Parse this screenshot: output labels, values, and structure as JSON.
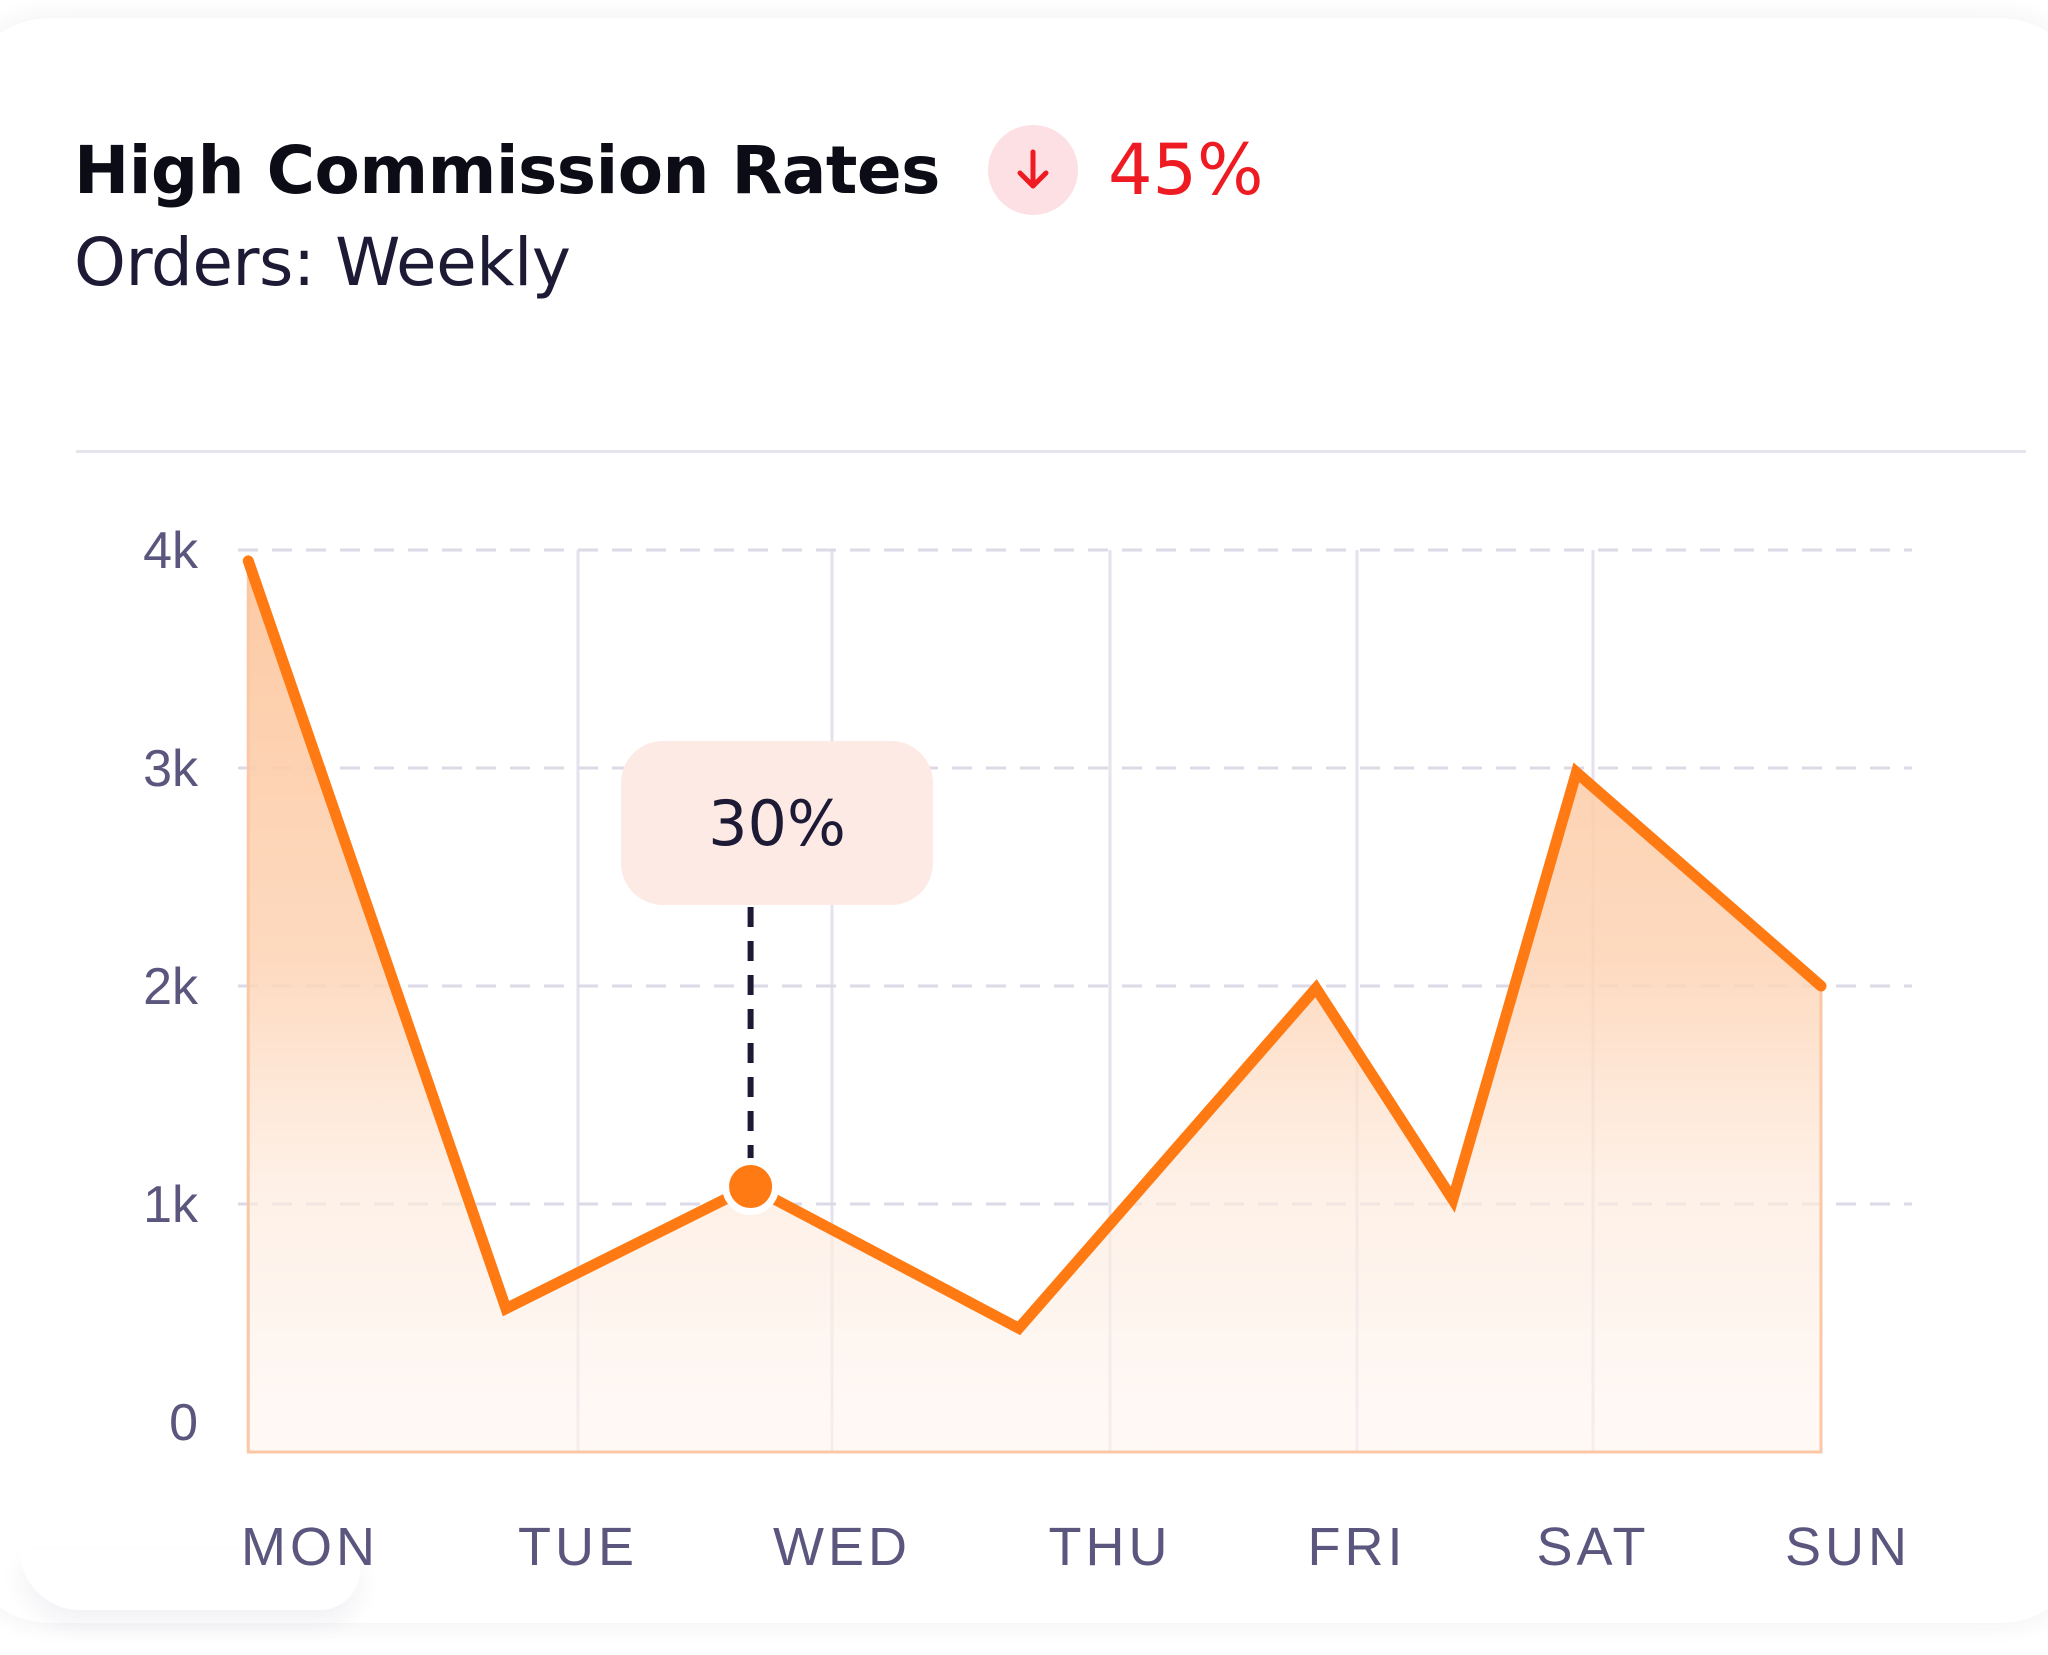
{
  "header": {
    "title": "High Commission Rates",
    "trend_value": "45%",
    "trend_direction": "down",
    "trend_icon": "arrow-down-icon",
    "subtitle": "Orders: Weekly"
  },
  "tooltip": {
    "text": "30%",
    "category": "WED"
  },
  "colors": {
    "line": "#ff7a12",
    "fill": "#fdc79f",
    "trend_down": "#ee1b22",
    "trend_badge_bg": "#fde0e4",
    "tooltip_bg": "#fdeae4"
  },
  "chart_data": {
    "type": "area",
    "title": "High Commission Rates",
    "subtitle": "Orders: Weekly",
    "categories": [
      "MON",
      "TUE",
      "WED",
      "THU",
      "FRI",
      "SAT",
      "SUN"
    ],
    "y_tick_labels": [
      "0",
      "1k",
      "2k",
      "3k",
      "4k"
    ],
    "y_ticks": [
      0,
      1000,
      2000,
      3000,
      4000
    ],
    "ylim": [
      0,
      4000
    ],
    "grid": true,
    "series": [
      {
        "x": [
          0,
          1,
          2,
          3,
          4,
          5,
          6
        ],
        "values": [
          3900,
          450,
          950,
          500,
          2000,
          1050,
          3000
        ]
      }
    ],
    "line_points": [
      {
        "x": 0.02,
        "y": 3950
      },
      {
        "x": 1.0,
        "y": 520
      },
      {
        "x": 1.93,
        "y": 1080
      },
      {
        "x": 2.95,
        "y": 430
      },
      {
        "x": 4.08,
        "y": 1990
      },
      {
        "x": 4.6,
        "y": 1020
      },
      {
        "x": 5.07,
        "y": 2980
      },
      {
        "x": 6.0,
        "y": 2000
      }
    ],
    "highlight": {
      "x": 1.93,
      "y": 1080,
      "label": "30%"
    }
  }
}
